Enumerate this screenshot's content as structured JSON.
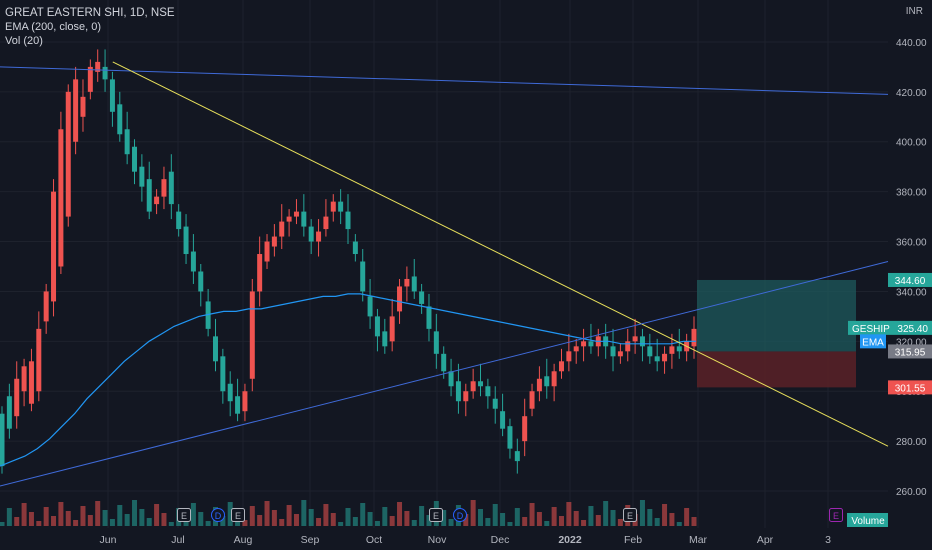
{
  "legend": {
    "title": "GREAT EASTERN SHI, 1D, NSE",
    "ema": "EMA (200, close, 0)",
    "vol": "Vol (20)"
  },
  "currency": "INR",
  "colors": {
    "background": "#131722",
    "up": "#26a69a",
    "down": "#ef5350",
    "ema": "#2196f3",
    "trendline_yellow": "#e7df5b",
    "trendline_blue": "#3f6ad8",
    "profit_zone": "#1e5a5c",
    "loss_zone": "#5a2127",
    "axis_text": "#b2b5be"
  },
  "chart_data": {
    "type": "candlestick",
    "symbol": "GESHIP",
    "timeframe": "1D",
    "exchange": "NSE",
    "x_axis_labels": [
      "Jun",
      "Jul",
      "Aug",
      "Sep",
      "Oct",
      "Nov",
      "Dec",
      "2022",
      "Feb",
      "Mar",
      "Apr",
      "3"
    ],
    "y_ticks": [
      260,
      280,
      300,
      320,
      340,
      360,
      380,
      400,
      420,
      440
    ],
    "ylim": [
      250,
      452
    ],
    "price_labels": [
      {
        "label": "344.60",
        "value": 344.6,
        "color": "#26a69a"
      },
      {
        "label": "GESHIP  325.40",
        "value": 325.4,
        "color": "#26a69a"
      },
      {
        "label": "EMA",
        "value": 320.0,
        "color": "#2196f3"
      },
      {
        "label": "315.95",
        "value": 315.95,
        "color": "#787b86"
      },
      {
        "label": "301.55",
        "value": 301.55,
        "color": "#ef5350"
      }
    ],
    "trade_setup": {
      "entry": 315.95,
      "target": 344.6,
      "stop": 301.55
    },
    "event_markers": [
      {
        "label": "E",
        "month": "Jun"
      },
      {
        "label": "D",
        "month": "Aug"
      },
      {
        "label": "E",
        "month": "Aug"
      },
      {
        "label": "E",
        "month": "Nov"
      },
      {
        "label": "D",
        "month": "Nov"
      },
      {
        "label": "E",
        "month": "Feb"
      },
      {
        "label": "E",
        "month": "Mar"
      }
    ],
    "volume_label": "Volume",
    "series_points": [
      [
        270,
        291
      ],
      [
        285,
        298
      ],
      [
        305,
        290
      ],
      [
        310,
        300
      ],
      [
        312,
        295
      ],
      [
        325,
        300
      ],
      [
        340,
        328
      ],
      [
        380,
        336
      ],
      [
        405,
        350
      ],
      [
        420,
        370
      ],
      [
        425,
        400
      ],
      [
        418,
        410
      ],
      [
        430,
        420
      ],
      [
        432,
        428
      ],
      [
        425,
        430
      ],
      [
        412,
        425
      ],
      [
        403,
        415
      ],
      [
        395,
        405
      ],
      [
        388,
        398
      ],
      [
        382,
        390
      ],
      [
        372,
        385
      ],
      [
        378,
        375
      ],
      [
        385,
        378
      ],
      [
        375,
        388
      ],
      [
        365,
        372
      ],
      [
        355,
        366
      ],
      [
        348,
        356
      ],
      [
        340,
        348
      ],
      [
        325,
        336
      ],
      [
        312,
        322
      ],
      [
        300,
        314
      ],
      [
        296,
        303
      ],
      [
        291,
        298
      ],
      [
        300,
        292
      ],
      [
        340,
        305
      ],
      [
        355,
        340
      ],
      [
        360,
        352
      ],
      [
        362,
        358
      ],
      [
        368,
        362
      ],
      [
        370,
        368
      ],
      [
        372,
        370
      ],
      [
        366,
        372
      ],
      [
        360,
        366
      ],
      [
        364,
        360
      ],
      [
        370,
        365
      ],
      [
        376,
        372
      ],
      [
        372,
        376
      ],
      [
        365,
        372
      ],
      [
        355,
        360
      ],
      [
        340,
        352
      ],
      [
        330,
        338
      ],
      [
        322,
        330
      ],
      [
        318,
        324
      ],
      [
        330,
        320
      ],
      [
        342,
        332
      ],
      [
        345,
        342
      ],
      [
        340,
        346
      ],
      [
        335,
        340
      ],
      [
        325,
        334
      ],
      [
        315,
        324
      ],
      [
        308,
        315
      ],
      [
        302,
        308
      ],
      [
        296,
        304
      ],
      [
        300,
        296
      ],
      [
        304,
        300
      ],
      [
        302,
        304
      ],
      [
        298,
        302
      ],
      [
        293,
        297
      ],
      [
        285,
        292
      ],
      [
        277,
        286
      ],
      [
        272,
        276
      ],
      [
        290,
        280
      ],
      [
        300,
        293
      ],
      [
        305,
        300
      ],
      [
        302,
        306
      ],
      [
        308,
        302
      ],
      [
        312,
        308
      ],
      [
        316,
        312
      ],
      [
        318,
        316
      ],
      [
        320,
        318
      ],
      [
        318,
        320
      ],
      [
        322,
        318
      ],
      [
        318,
        322
      ],
      [
        314,
        318
      ],
      [
        316,
        314
      ],
      [
        320,
        316
      ],
      [
        322,
        320
      ],
      [
        318,
        322
      ],
      [
        314,
        318
      ],
      [
        312,
        314
      ],
      [
        315,
        312
      ],
      [
        318,
        315
      ],
      [
        316,
        318
      ],
      [
        320,
        316
      ],
      [
        325,
        318
      ]
    ],
    "ema_points": [
      270,
      272,
      274,
      277,
      281,
      286,
      291,
      297,
      302,
      307,
      312,
      316,
      320,
      323,
      326,
      328,
      330,
      331,
      332,
      332,
      333,
      333,
      334,
      335,
      336,
      337,
      338,
      338,
      339,
      339,
      338,
      337,
      336,
      335,
      334,
      333,
      332,
      331,
      330,
      329,
      328,
      327,
      326,
      325,
      324,
      323,
      322,
      321,
      320,
      320,
      319,
      319,
      319,
      319,
      319,
      320,
      320
    ],
    "trendlines": [
      {
        "name": "upper-horizontal",
        "from": [
          0,
          430
        ],
        "to": [
          1,
          419
        ]
      },
      {
        "name": "descending-yellow",
        "from": [
          0.127,
          432
        ],
        "to": [
          1,
          278
        ]
      },
      {
        "name": "ascending-blue",
        "from": [
          0,
          262
        ],
        "to": [
          1,
          352
        ]
      }
    ]
  }
}
